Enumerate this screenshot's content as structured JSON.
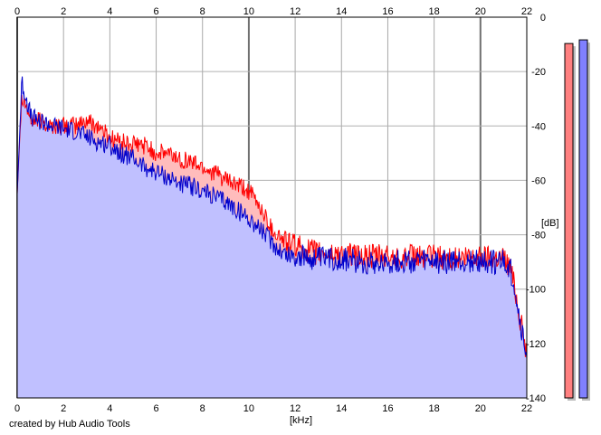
{
  "chart_data": {
    "type": "area",
    "xlabel": "[kHz]",
    "ylabel": "[dB]",
    "xlim": [
      0,
      22
    ],
    "ylim": [
      -140,
      0
    ],
    "x_ticks": [
      "0",
      "2",
      "4",
      "6",
      "8",
      "10",
      "12",
      "14",
      "16",
      "18",
      "20",
      "22"
    ],
    "y_ticks": [
      "0",
      "-20",
      "-40",
      "-60",
      "-80",
      "-100",
      "-120",
      "-140"
    ],
    "grid": true,
    "series": [
      {
        "color": "#ff0000",
        "fill": "#ffbcbc",
        "x": [
          0,
          0.2,
          0.4,
          0.6,
          1,
          1.5,
          2,
          2.5,
          3,
          3.5,
          4,
          4.5,
          5,
          5.5,
          6,
          6.5,
          7,
          7.5,
          8,
          8.5,
          9,
          9.5,
          10,
          10.5,
          11,
          11.5,
          12,
          13,
          14,
          15,
          16,
          17,
          18,
          19,
          20,
          20.5,
          21,
          21.3,
          21.5,
          21.7,
          22
        ],
        "values": [
          -65,
          -28,
          -33,
          -38,
          -38,
          -40,
          -40,
          -40,
          -38,
          -40,
          -44,
          -46,
          -47,
          -47,
          -50,
          -50,
          -52,
          -53,
          -55,
          -57,
          -60,
          -62,
          -64,
          -70,
          -78,
          -82,
          -84,
          -87,
          -87,
          -88,
          -88,
          -88,
          -88,
          -89,
          -88,
          -88,
          -88,
          -92,
          -100,
          -110,
          -124
        ]
      },
      {
        "color": "#0000cc",
        "fill": "#c0c0ff",
        "x": [
          0,
          0.2,
          0.4,
          0.6,
          1,
          1.5,
          2,
          2.5,
          3,
          3.5,
          4,
          4.5,
          5,
          5.5,
          6,
          6.5,
          7,
          7.5,
          8,
          8.5,
          9,
          9.5,
          10,
          10.5,
          11,
          11.5,
          12,
          13,
          14,
          15,
          16,
          17,
          18,
          19,
          20,
          20.5,
          21,
          21.3,
          21.5,
          21.7,
          22
        ],
        "values": [
          -65,
          -24,
          -30,
          -37,
          -38,
          -40,
          -41,
          -42,
          -44,
          -46,
          -47,
          -50,
          -52,
          -55,
          -57,
          -59,
          -61,
          -62,
          -64,
          -66,
          -68,
          -71,
          -74,
          -78,
          -83,
          -87,
          -88,
          -89,
          -89,
          -90,
          -90,
          -90,
          -90,
          -90,
          -90,
          -90,
          -90,
          -93,
          -100,
          -112,
          -125
        ]
      }
    ],
    "level_meters": [
      {
        "color": "#ff8080",
        "level": 0.97
      },
      {
        "color": "#8080ff",
        "level": 0.98
      }
    ]
  },
  "footer": {
    "credit": "created by Hub Audio Tools"
  }
}
